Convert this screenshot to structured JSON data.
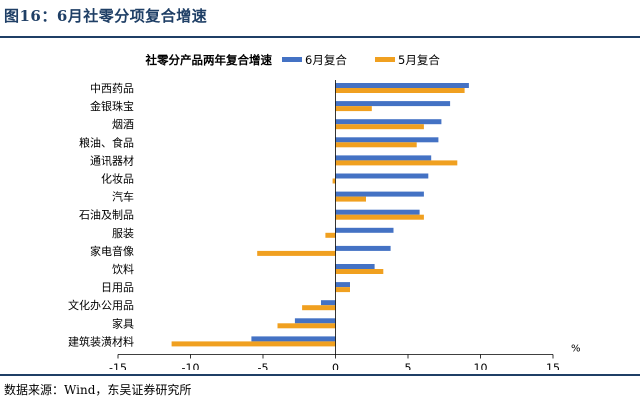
{
  "figure_title": "图16：6月社零分项复合增速",
  "source_note": "数据来源：Wind，东吴证券研究所",
  "chart_data": {
    "type": "bar",
    "orientation": "horizontal",
    "title": "社零分产品两年复合增速",
    "categories": [
      "中西药品",
      "金银珠宝",
      "烟酒",
      "粮油、食品",
      "通讯器材",
      "化妆品",
      "汽车",
      "石油及制品",
      "服装",
      "家电音像",
      "饮料",
      "日用品",
      "文化办公用品",
      "家具",
      "建筑装潢材料"
    ],
    "series": [
      {
        "name": "6月复合",
        "color": "#4472c4",
        "values": [
          9.2,
          7.9,
          7.3,
          7.1,
          6.6,
          6.4,
          6.1,
          5.8,
          4.0,
          3.8,
          2.7,
          1.0,
          -1.0,
          -2.8,
          -5.8
        ]
      },
      {
        "name": "5月复合",
        "color": "#f0a020",
        "values": [
          8.9,
          2.5,
          6.1,
          5.6,
          8.4,
          -0.2,
          2.1,
          6.1,
          -0.7,
          -5.4,
          3.3,
          1.0,
          -2.3,
          -4.0,
          -11.3
        ]
      }
    ],
    "xlim": [
      -15,
      15
    ],
    "xticks": [
      -15,
      -10,
      -5,
      0,
      5,
      10,
      15
    ],
    "xunit": "%",
    "legend_position": "top"
  }
}
